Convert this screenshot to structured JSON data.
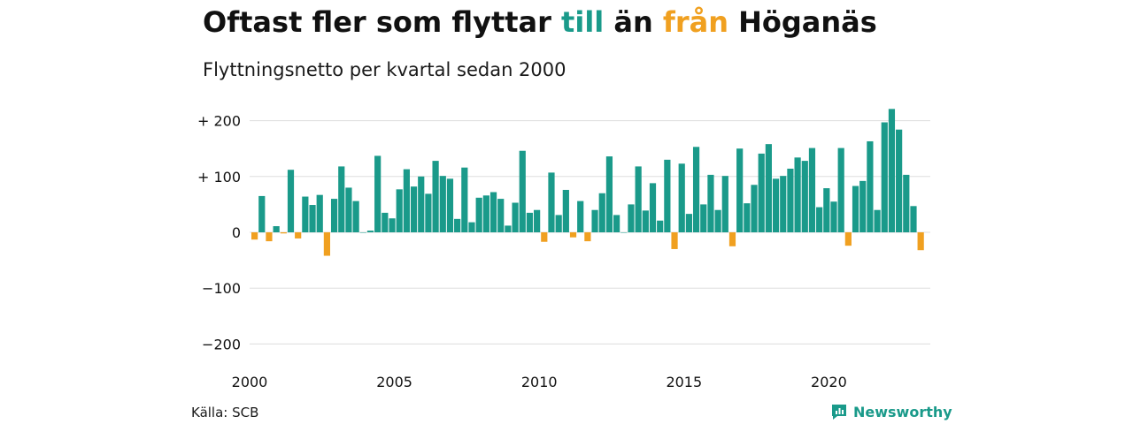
{
  "header": {
    "title_part1": "Oftast fler som flyttar ",
    "title_till": "till",
    "title_part2": " än ",
    "title_fran": "från",
    "title_part3": " Höganäs",
    "subtitle": "Flyttningsnetto per kvartal sedan 2000"
  },
  "footer": {
    "source": "Källa: SCB",
    "brand": "Newsworthy"
  },
  "colors": {
    "positive": "#1a9a8a",
    "negative": "#f0a020",
    "grid": "#dddddd",
    "brand": "#1a9a8a"
  },
  "chart_data": {
    "type": "bar",
    "title": "",
    "xlabel": "",
    "ylabel": "",
    "ylim": [
      -200,
      220
    ],
    "yticks": [
      200,
      100,
      0,
      -100,
      -200
    ],
    "ytick_labels": [
      "+ 200",
      "+ 100",
      "0",
      "−100",
      "−200"
    ],
    "xtick_labels": [
      "2000",
      "2005",
      "2010",
      "2015",
      "2020"
    ],
    "xtick_years": [
      2000,
      2005,
      2010,
      2015,
      2020
    ],
    "start_year": 2000,
    "values": [
      -13,
      65,
      -16,
      11,
      -2,
      112,
      -11,
      64,
      49,
      67,
      -42,
      60,
      118,
      80,
      56,
      0,
      3,
      137,
      35,
      25,
      77,
      113,
      82,
      100,
      69,
      128,
      101,
      96,
      24,
      116,
      18,
      62,
      66,
      72,
      60,
      12,
      53,
      146,
      35,
      40,
      -17,
      107,
      31,
      76,
      -9,
      56,
      -16,
      40,
      70,
      136,
      31,
      0,
      50,
      118,
      39,
      88,
      21,
      130,
      -30,
      123,
      33,
      153,
      50,
      103,
      40,
      101,
      -25,
      150,
      52,
      85,
      141,
      158,
      96,
      101,
      114,
      134,
      128,
      151,
      45,
      79,
      55,
      151,
      -24,
      83,
      92,
      163,
      40,
      197,
      221,
      184,
      103,
      47,
      -32
    ]
  }
}
